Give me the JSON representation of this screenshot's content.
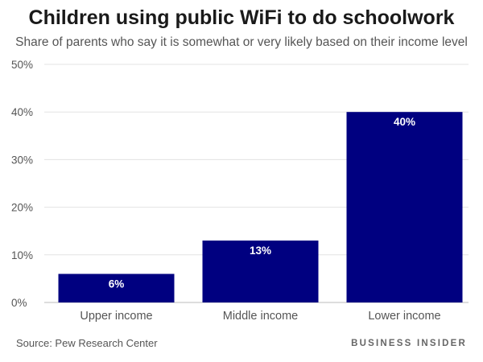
{
  "chart_data": {
    "type": "bar",
    "title": "Children using public WiFi to do schoolwork",
    "subtitle": "Share of parents who say it is somewhat or very likely based on their income level",
    "categories": [
      "Upper income",
      "Middle income",
      "Lower income"
    ],
    "values": [
      6,
      13,
      40
    ],
    "value_labels": [
      "6%",
      "13%",
      "40%"
    ],
    "xlabel": "",
    "ylabel": "",
    "ylim": [
      0,
      50
    ],
    "yticks": [
      0,
      10,
      20,
      30,
      40,
      50
    ],
    "ytick_labels": [
      "0%",
      "10%",
      "20%",
      "30%",
      "40%",
      "50%"
    ],
    "grid": true,
    "legend": "none",
    "bar_color": "#000080",
    "value_label_color": "#ffffff"
  },
  "footer": {
    "source": "Source: Pew Research Center",
    "brand": "BUSINESS INSIDER"
  }
}
